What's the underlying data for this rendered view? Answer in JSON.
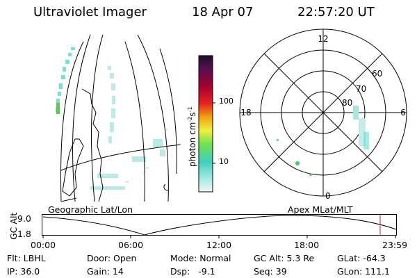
{
  "header": {
    "title": "Ultraviolet Imager",
    "date": "18 Apr 07",
    "time": "22:57:20 UT"
  },
  "colorbar": {
    "label": "photon cm",
    "label_sup1": "-2",
    "label_s": "s",
    "label_sup2": "-1",
    "ticks": [
      "100",
      "10"
    ]
  },
  "polar_plot": {
    "mlt_labels": {
      "top": "12",
      "left": "18",
      "right": "6",
      "bottom": "0"
    },
    "lat_labels": [
      "60",
      "70",
      "80"
    ]
  },
  "panel_labels": {
    "left": "Geographic Lat/Lon",
    "right": "Apex MLat/MLT"
  },
  "altitude_plot": {
    "ylabel": "GC Alt",
    "yticks": [
      "9.0",
      "1.8"
    ],
    "xticks": [
      "00:00",
      "06:00",
      "12:00",
      "18:00",
      "23:59"
    ]
  },
  "status": {
    "filter": "Flt: LBHL",
    "ip": "IP: 36.0",
    "door": "Door: Open",
    "gain": "Gain: 14",
    "mode": "Mode: Normal",
    "dsp": "Dsp:   -9.1",
    "gc_alt": "GC Alt: 5.3 Re",
    "seq": "Seq: 39",
    "glat": "GLat: -64.3",
    "glon": "GLon: 111.1"
  }
}
